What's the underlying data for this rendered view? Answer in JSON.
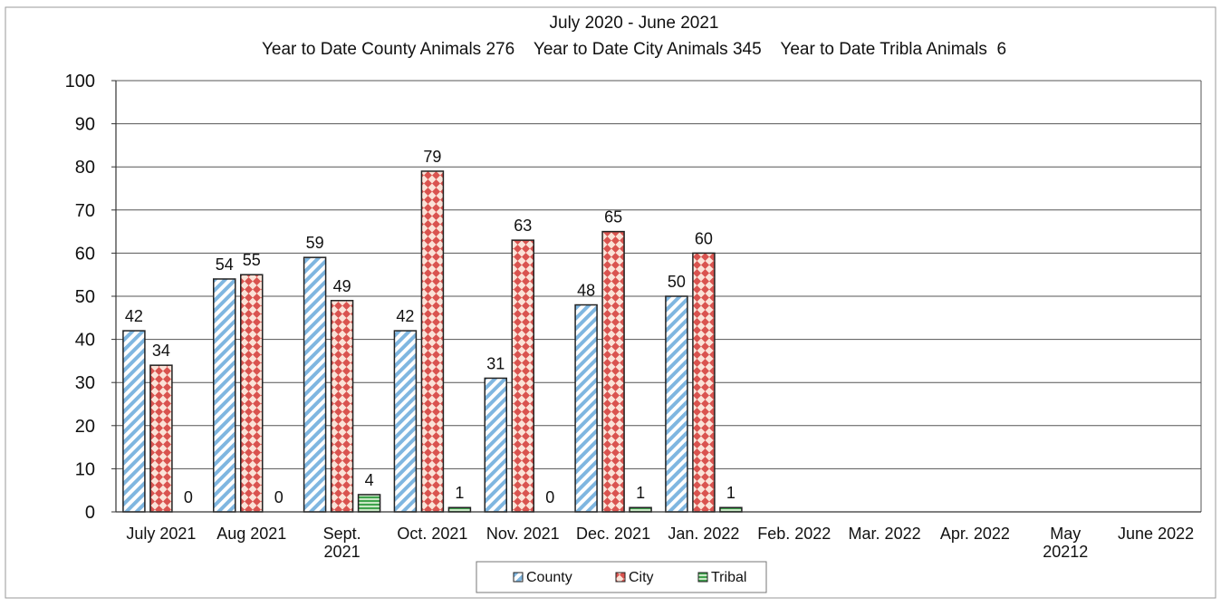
{
  "chart_data": {
    "type": "bar",
    "title_lines": [
      "July 2020 - June 2021",
      "Year to Date County Animals 276    Year to Date City Animals 345    Year to Date Tribla Animals  6"
    ],
    "categories": [
      [
        "July 2021"
      ],
      [
        "Aug 2021"
      ],
      [
        "Sept.",
        "2021"
      ],
      [
        "Oct. 2021"
      ],
      [
        "Nov. 2021"
      ],
      [
        "Dec. 2021"
      ],
      [
        "Jan. 2022"
      ],
      [
        "Feb. 2022"
      ],
      [
        "Mar. 2022"
      ],
      [
        "Apr. 2022"
      ],
      [
        "May",
        "20212"
      ],
      [
        "June 2022"
      ]
    ],
    "series": [
      {
        "name": "County",
        "color": "#7fb6e0",
        "pattern": "diagonal-stripes",
        "values": [
          42,
          54,
          59,
          42,
          31,
          48,
          50,
          null,
          null,
          null,
          null,
          null
        ]
      },
      {
        "name": "City",
        "color": "#d9534f",
        "pattern": "diamonds",
        "values": [
          34,
          55,
          49,
          79,
          63,
          65,
          60,
          null,
          null,
          null,
          null,
          null
        ]
      },
      {
        "name": "Tribal",
        "color": "#3fa34d",
        "pattern": "horizontal-stripes",
        "values": [
          0,
          0,
          4,
          1,
          0,
          1,
          1,
          null,
          null,
          null,
          null,
          null
        ]
      }
    ],
    "ylim": [
      0,
      100
    ],
    "yticks": [
      0,
      10,
      20,
      30,
      40,
      50,
      60,
      70,
      80,
      90,
      100
    ],
    "grid": true,
    "legend_position": "bottom-center",
    "data_labels": true
  }
}
